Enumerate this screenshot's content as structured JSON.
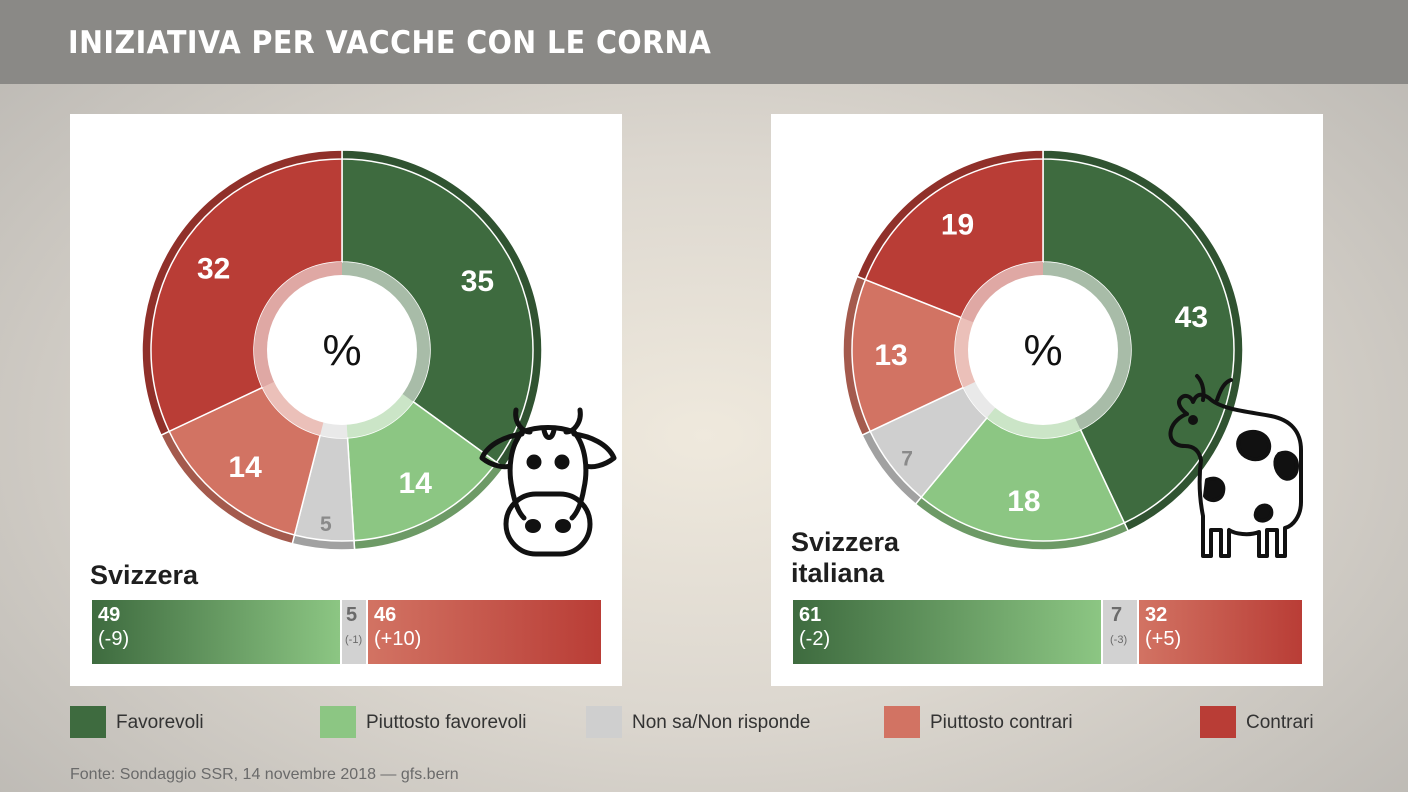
{
  "title": "INIZIATIVA PER VACCHE CON LE CORNA",
  "colors": {
    "favorevoli": "#3e6b3f",
    "piuttosto_favorevoli": "#8cc683",
    "non_sa": "#cfcfcf",
    "piuttosto_contrari": "#d27363",
    "contrari": "#b93d36"
  },
  "chart_data": [
    {
      "type": "pie",
      "region": "Svizzera",
      "center_label": "%",
      "slices": [
        {
          "label": "Favorevoli",
          "value": 35
        },
        {
          "label": "Piuttosto favorevoli",
          "value": 14
        },
        {
          "label": "Non sa/Non risponde",
          "value": 5
        },
        {
          "label": "Piuttosto contrari",
          "value": 14
        },
        {
          "label": "Contrari",
          "value": 32
        }
      ],
      "summary_bar": [
        {
          "label": "Favorevoli",
          "value": "49",
          "diff": "(-9)"
        },
        {
          "label": "Non sa/Non risponde",
          "value": "5",
          "diff": "(-1)"
        },
        {
          "label": "Contrari",
          "value": "46",
          "diff": "(+10)"
        }
      ],
      "icon": "cow-face-icon"
    },
    {
      "type": "pie",
      "region": "Svizzera italiana",
      "center_label": "%",
      "slices": [
        {
          "label": "Favorevoli",
          "value": 43
        },
        {
          "label": "Piuttosto favorevoli",
          "value": 18
        },
        {
          "label": "Non sa/Non risponde",
          "value": 7
        },
        {
          "label": "Piuttosto contrari",
          "value": 13
        },
        {
          "label": "Contrari",
          "value": 19
        }
      ],
      "summary_bar": [
        {
          "label": "Favorevoli",
          "value": "61",
          "diff": "(-2)"
        },
        {
          "label": "Non sa/Non risponde",
          "value": "7",
          "diff": "(-3)"
        },
        {
          "label": "Contrari",
          "value": "32",
          "diff": "(+5)"
        }
      ],
      "icon": "cow-icon"
    }
  ],
  "legend": [
    {
      "label": "Favorevoli",
      "key": "favorevoli"
    },
    {
      "label": "Piuttosto favorevoli",
      "key": "piuttosto_favorevoli"
    },
    {
      "label": "Non sa/Non risponde",
      "key": "non_sa"
    },
    {
      "label": "Piuttosto contrari",
      "key": "piuttosto_contrari"
    },
    {
      "label": "Contrari",
      "key": "contrari"
    }
  ],
  "source": "Fonte: Sondaggio SSR, 14 novembre 2018 — gfs.bern"
}
